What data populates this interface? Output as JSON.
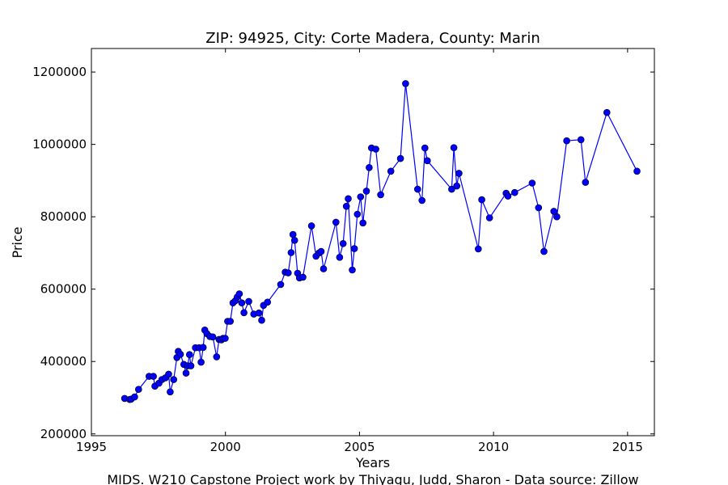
{
  "chart_data": {
    "type": "line",
    "title": "ZIP: 94925, City: Corte Madera, County: Marin",
    "xlabel": "Years",
    "ylabel": "Price",
    "footer": "MIDS. W210 Capstone Project work by Thiyagu, Judd, Sharon  -  Data source: Zillow",
    "xlim": [
      1995,
      2016
    ],
    "ylim": [
      195000,
      1265000
    ],
    "xticks": [
      1995,
      2000,
      2005,
      2010,
      2015
    ],
    "yticks": [
      200000,
      400000,
      600000,
      800000,
      1000000,
      1200000
    ],
    "grid": false,
    "line_color": "#0000ff",
    "marker_color": "#0000ff",
    "series": [
      {
        "x": [
          1996.24,
          1996.43,
          1996.48,
          1996.61,
          1996.76,
          1997.15,
          1997.31,
          1997.37,
          1997.52,
          1997.63,
          1997.76,
          1997.88,
          1997.94,
          1998.07,
          1998.19,
          1998.24,
          1998.32,
          1998.45,
          1998.53,
          1998.59,
          1998.66,
          1998.71,
          1998.88,
          1999.02,
          1999.09,
          1999.17,
          1999.23,
          1999.31,
          1999.42,
          1999.53,
          1999.67,
          1999.76,
          1999.85,
          1999.91,
          1999.99,
          2000.08,
          2000.18,
          2000.28,
          2000.37,
          2000.44,
          2000.52,
          2000.61,
          2000.69,
          2000.87,
          2001.06,
          2001.25,
          2001.35,
          2001.42,
          2001.57,
          2002.06,
          2002.23,
          2002.34,
          2002.45,
          2002.52,
          2002.58,
          2002.69,
          2002.76,
          2002.89,
          2003.21,
          2003.38,
          2003.49,
          2003.57,
          2003.66,
          2004.12,
          2004.26,
          2004.39,
          2004.51,
          2004.58,
          2004.73,
          2004.81,
          2004.92,
          2005.04,
          2005.13,
          2005.26,
          2005.36,
          2005.45,
          2005.61,
          2005.79,
          2006.17,
          2006.53,
          2006.72,
          2007.17,
          2007.33,
          2007.44,
          2007.53,
          2008.44,
          2008.52,
          2008.63,
          2008.71,
          2009.43,
          2009.56,
          2009.85,
          2010.47,
          2010.54,
          2010.79,
          2011.44,
          2011.68,
          2011.88,
          2012.25,
          2012.36,
          2012.73,
          2013.26,
          2013.43,
          2014.23,
          2015.35
        ],
        "y": [
          298000,
          295000,
          296000,
          302000,
          323000,
          359000,
          359000,
          332000,
          340000,
          350000,
          355000,
          365000,
          316000,
          350000,
          411000,
          428000,
          420000,
          392000,
          368000,
          388000,
          419000,
          388000,
          438000,
          438000,
          398000,
          439000,
          487000,
          477000,
          469000,
          468000,
          413000,
          461000,
          460000,
          464000,
          464000,
          511000,
          511000,
          562000,
          568000,
          578000,
          587000,
          562000,
          535000,
          566000,
          531000,
          534000,
          514000,
          555000,
          564000,
          613000,
          647000,
          645000,
          701000,
          751000,
          735000,
          644000,
          631000,
          633000,
          775000,
          691000,
          700000,
          704000,
          656000,
          785000,
          688000,
          726000,
          829000,
          850000,
          653000,
          712000,
          807000,
          855000,
          783000,
          871000,
          936000,
          990000,
          987000,
          861000,
          926000,
          961000,
          1168000,
          876000,
          845000,
          990000,
          955000,
          876000,
          991000,
          885000,
          920000,
          711000,
          847000,
          797000,
          865000,
          857000,
          867000,
          893000,
          825000,
          704000,
          815000,
          800000,
          1010000,
          1013000,
          895000,
          1088000,
          926000
        ]
      }
    ]
  }
}
